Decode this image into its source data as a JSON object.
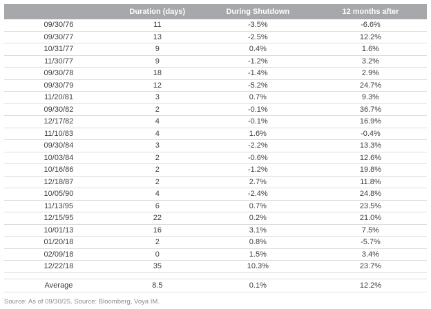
{
  "chart_data": {
    "type": "table",
    "title": "",
    "columns": [
      "",
      "Duration (days)",
      "During Shutdown",
      "12 months after"
    ],
    "rows": [
      [
        "09/30/76",
        "11",
        "-3.5%",
        "-6.6%"
      ],
      [
        "09/30/77",
        "13",
        "-2.5%",
        "12.2%"
      ],
      [
        "10/31/77",
        "9",
        "0.4%",
        "1.6%"
      ],
      [
        "11/30/77",
        "9",
        "-1.2%",
        "3.2%"
      ],
      [
        "09/30/78",
        "18",
        "-1.4%",
        "2.9%"
      ],
      [
        "09/30/79",
        "12",
        "-5.2%",
        "24.7%"
      ],
      [
        "11/20/81",
        "3",
        "0.7%",
        "9.3%"
      ],
      [
        "09/30/82",
        "2",
        "-0.1%",
        "36.7%"
      ],
      [
        "12/17/82",
        "4",
        "-0.1%",
        "16.9%"
      ],
      [
        "11/10/83",
        "4",
        "1.6%",
        "-0.4%"
      ],
      [
        "09/30/84",
        "3",
        "-2.2%",
        "13.3%"
      ],
      [
        "10/03/84",
        "2",
        "-0.6%",
        "12.6%"
      ],
      [
        "10/16/86",
        "2",
        "-1.2%",
        "19.8%"
      ],
      [
        "12/18/87",
        "2",
        "2.7%",
        "11.8%"
      ],
      [
        "10/05/90",
        "4",
        "-2.4%",
        "24.8%"
      ],
      [
        "11/13/95",
        "6",
        "0.7%",
        "23.5%"
      ],
      [
        "12/15/95",
        "22",
        "0.2%",
        "21.0%"
      ],
      [
        "10/01/13",
        "16",
        "3.1%",
        "7.5%"
      ],
      [
        "01/20/18",
        "2",
        "0.8%",
        "-5.7%"
      ],
      [
        "02/09/18",
        "0",
        "1.5%",
        "3.4%"
      ],
      [
        "12/22/18",
        "35",
        "10.3%",
        "23.7%"
      ]
    ],
    "average_row": [
      "Average",
      "8.5",
      "0.1%",
      "12.2%"
    ]
  },
  "footer": {
    "source": "Source: As of 09/30/25. Source: Bloomberg, Voya IM."
  },
  "colors": {
    "header_bg": "#a6a8ab",
    "header_text": "#ffffff",
    "row_border": "#dcdddd",
    "text": "#3d3d3d",
    "footer_text": "#8b8b8b"
  }
}
